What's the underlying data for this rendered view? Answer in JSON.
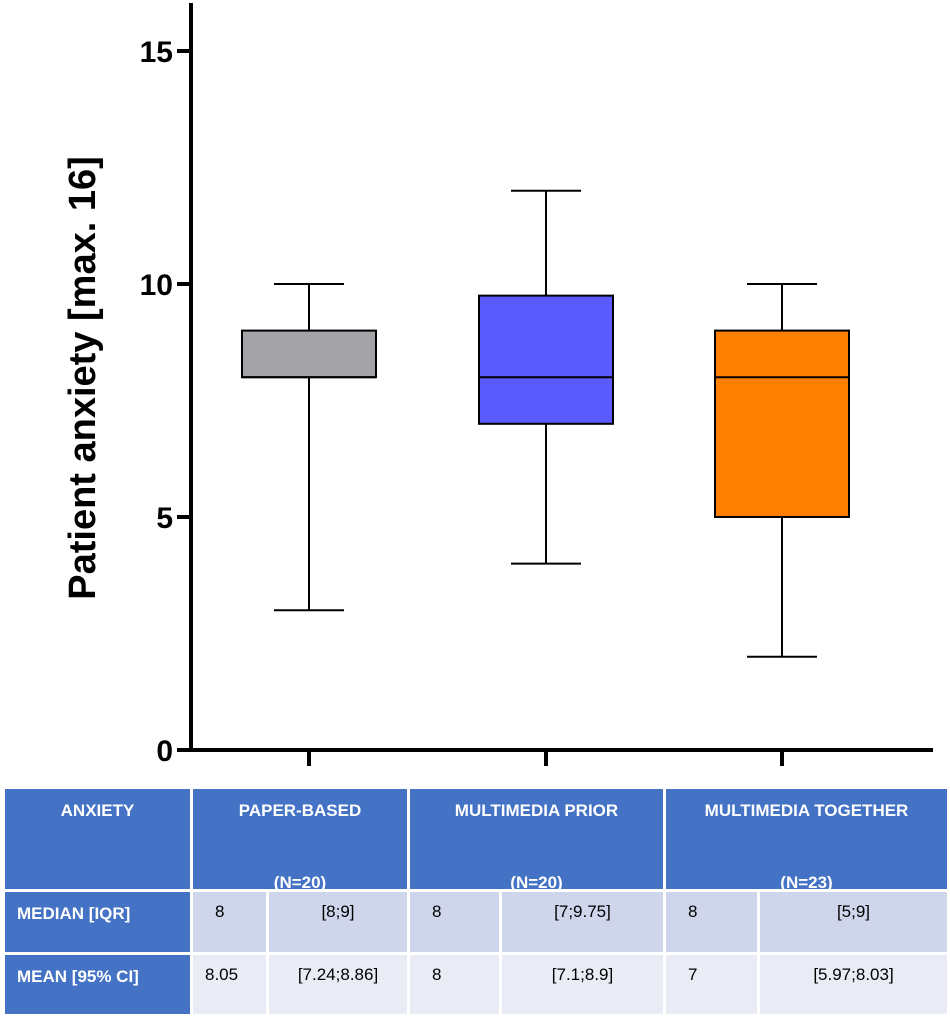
{
  "chart_data": {
    "type": "box",
    "ylabel": "Patient anxiety [max. 16]",
    "ylim": [
      0,
      15.5
    ],
    "yticks": [
      "0",
      "5",
      "10",
      "15"
    ],
    "boxes": [
      {
        "key": "paper",
        "min": 3,
        "q1": 8,
        "median": 8,
        "q3": 9,
        "max": 10,
        "color": "#a3a3a8"
      },
      {
        "key": "prior",
        "min": 4,
        "q1": 7,
        "median": 8,
        "q3": 9.75,
        "max": 12,
        "color": "#5a5afe"
      },
      {
        "key": "together",
        "min": 2,
        "q1": 5,
        "median": 8,
        "q3": 9,
        "max": 10,
        "color": "#ff8000"
      }
    ]
  },
  "table": {
    "corner": "ANXIETY",
    "groups": [
      {
        "title": "PAPER-BASED",
        "n": "(N=20)"
      },
      {
        "title": "MULTIMEDIA PRIOR",
        "n": "(N=20)"
      },
      {
        "title": "MULTIMEDIA TOGETHER",
        "n": "(N=23)"
      }
    ],
    "rows": [
      {
        "label": "MEDIAN [IQR]",
        "cells": [
          "8",
          "[8;9]",
          "8",
          "[7;9.75]",
          "8",
          "[5;9]"
        ]
      },
      {
        "label": "MEAN [95% CI]",
        "cells": [
          "8.05",
          "[7.24;8.86]",
          "8",
          "[7.1;8.9]",
          "7",
          "[5.97;8.03]"
        ]
      }
    ]
  }
}
